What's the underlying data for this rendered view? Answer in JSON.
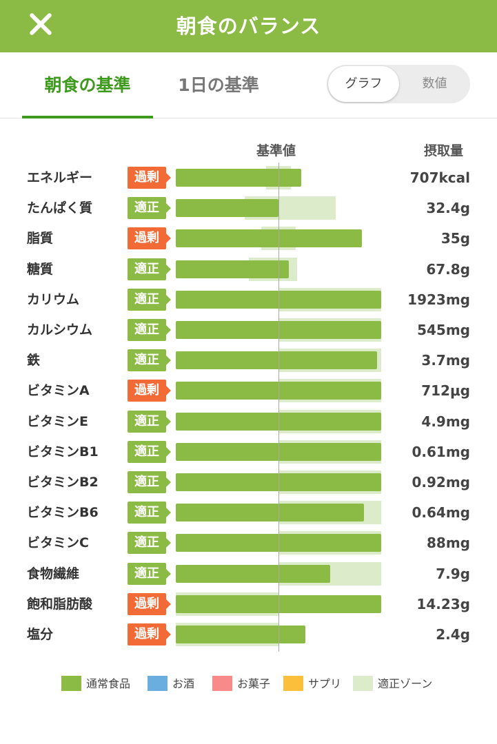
{
  "header": {
    "title": "朝食のバランス"
  },
  "tabs": [
    {
      "label": "朝食の基準",
      "active": true
    },
    {
      "label": "1日の基準",
      "active": false
    }
  ],
  "view_toggle": {
    "graph": "グラフ",
    "numbers": "数値",
    "selected": "グラフ"
  },
  "columns": {
    "reference": "基準値",
    "intake": "摂取量"
  },
  "colors": {
    "normal_food": "#8cbb45",
    "alcohol": "#6aaee0",
    "sweets": "#f98a8a",
    "supplement": "#fbbf3c",
    "proper_zone": "#dcebc9",
    "status_over": "#f26a35",
    "status_ok": "#8cbb45",
    "header": "#8cbb45"
  },
  "chart_data": {
    "type": "bar",
    "reference_percent": 100,
    "x_max_percent": 200,
    "categories": [
      "エネルギー",
      "たんぱく質",
      "脂質",
      "糖質",
      "カリウム",
      "カルシウム",
      "鉄",
      "ビタミンA",
      "ビタミンE",
      "ビタミンB1",
      "ビタミンB2",
      "ビタミンB6",
      "ビタミンC",
      "食物繊維",
      "飽和脂肪酸",
      "塩分"
    ],
    "rows": [
      {
        "name": "エネルギー",
        "status": "過剰",
        "status_type": "over",
        "value": "707kcal",
        "percent": 122,
        "zone": [
          88,
          112
        ]
      },
      {
        "name": "たんぱく質",
        "status": "適正",
        "status_type": "ok",
        "value": "32.4g",
        "percent": 100,
        "zone": [
          67,
          156
        ]
      },
      {
        "name": "脂質",
        "status": "過剰",
        "status_type": "over",
        "value": "35g",
        "percent": 181,
        "zone": [
          83,
          117
        ]
      },
      {
        "name": "糖質",
        "status": "適正",
        "status_type": "ok",
        "value": "67.8g",
        "percent": 110,
        "zone": [
          71,
          118
        ]
      },
      {
        "name": "カリウム",
        "status": "適正",
        "status_type": "ok",
        "value": "1923mg",
        "percent": 200,
        "zone": [
          100,
          200
        ]
      },
      {
        "name": "カルシウム",
        "status": "適正",
        "status_type": "ok",
        "value": "545mg",
        "percent": 200,
        "zone": [
          100,
          200
        ]
      },
      {
        "name": "鉄",
        "status": "適正",
        "status_type": "ok",
        "value": "3.7mg",
        "percent": 196,
        "zone": [
          100,
          200
        ]
      },
      {
        "name": "ビタミンA",
        "status": "過剰",
        "status_type": "over",
        "value": "712μg",
        "percent": 200,
        "zone": [
          100,
          200
        ]
      },
      {
        "name": "ビタミンE",
        "status": "適正",
        "status_type": "ok",
        "value": "4.9mg",
        "percent": 200,
        "zone": [
          100,
          200
        ]
      },
      {
        "name": "ビタミンB1",
        "status": "適正",
        "status_type": "ok",
        "value": "0.61mg",
        "percent": 200,
        "zone": [
          100,
          200
        ]
      },
      {
        "name": "ビタミンB2",
        "status": "適正",
        "status_type": "ok",
        "value": "0.92mg",
        "percent": 200,
        "zone": [
          100,
          200
        ]
      },
      {
        "name": "ビタミンB6",
        "status": "適正",
        "status_type": "ok",
        "value": "0.64mg",
        "percent": 183,
        "zone": [
          100,
          200
        ]
      },
      {
        "name": "ビタミンC",
        "status": "適正",
        "status_type": "ok",
        "value": "88mg",
        "percent": 200,
        "zone": [
          100,
          200
        ]
      },
      {
        "name": "食物繊維",
        "status": "適正",
        "status_type": "ok",
        "value": "7.9g",
        "percent": 150,
        "zone": [
          100,
          200
        ]
      },
      {
        "name": "飽和脂肪酸",
        "status": "過剰",
        "status_type": "over",
        "value": "14.23g",
        "percent": 200,
        "zone": [
          0,
          100
        ]
      },
      {
        "name": "塩分",
        "status": "過剰",
        "status_type": "over",
        "value": "2.4g",
        "percent": 126,
        "zone": [
          0,
          100
        ]
      }
    ]
  },
  "legend": [
    {
      "label": "通常食品",
      "color": "#8cbb45"
    },
    {
      "label": "お酒",
      "color": "#6aaee0"
    },
    {
      "label": "お菓子",
      "color": "#f98a8a"
    },
    {
      "label": "サプリ",
      "color": "#fbbf3c"
    },
    {
      "label": "適正ゾーン",
      "color": "#dcebc9"
    }
  ]
}
